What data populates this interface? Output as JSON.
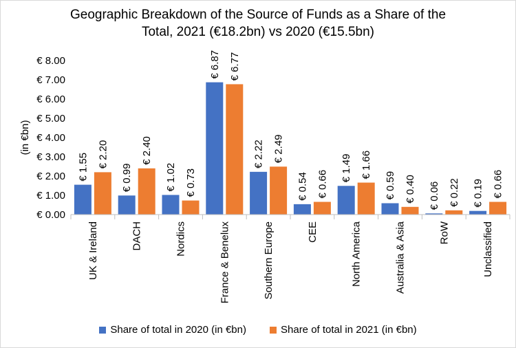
{
  "chart_data": {
    "type": "bar",
    "title_line1": "Geographic Breakdown of the Source of Funds as a Share of the",
    "title_line2": "Total, 2021 (€18.2bn) vs 2020 (€15.5bn)",
    "ylabel": "(in €bn)",
    "ylim": [
      0,
      8
    ],
    "yticks": [
      "€ 0.00",
      "€ 1.00",
      "€ 2.00",
      "€ 3.00",
      "€ 4.00",
      "€ 5.00",
      "€ 6.00",
      "€ 7.00",
      "€ 8.00"
    ],
    "categories": [
      "UK & Ireland",
      "DACH",
      "Nordics",
      "France & Benelux",
      "Southern Europe",
      "CEE",
      "North America",
      "Australia & Asia",
      "RoW",
      "Unclassified"
    ],
    "series": [
      {
        "name": "Share of total in 2020 (in €bn)",
        "color": "#4472C4",
        "values": [
          1.55,
          0.99,
          1.02,
          6.87,
          2.22,
          0.54,
          1.49,
          0.59,
          0.06,
          0.19
        ],
        "labels": [
          "€ 1.55",
          "€ 0.99",
          "€ 1.02",
          "€ 6.87",
          "€ 2.22",
          "€ 0.54",
          "€ 1.49",
          "€ 0.59",
          "€ 0.06",
          "€ 0.19"
        ]
      },
      {
        "name": "Share of total in 2021 (in €bn)",
        "color": "#ED7D31",
        "values": [
          2.2,
          2.4,
          0.73,
          6.77,
          2.49,
          0.66,
          1.66,
          0.4,
          0.22,
          0.66
        ],
        "labels": [
          "€ 2.20",
          "€ 2.40",
          "€ 0.73",
          "€ 6.77",
          "€ 2.49",
          "€ 0.66",
          "€ 1.66",
          "€ 0.40",
          "€ 0.22",
          "€ 0.66"
        ]
      }
    ],
    "legend_position": "bottom"
  }
}
